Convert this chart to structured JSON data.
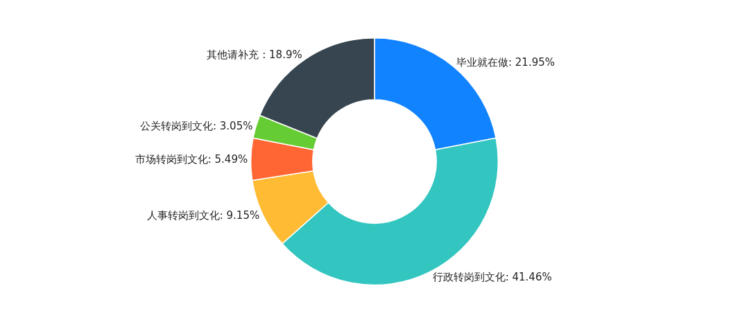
{
  "chart_data": {
    "type": "donut",
    "categories": [
      "毕业就在做",
      "行政转岗到文化",
      "人事转岗到文化",
      "市场转岗到文化",
      "公关转岗到文化",
      "其他请补充 "
    ],
    "values": [
      21.95,
      41.46,
      9.15,
      5.49,
      3.05,
      18.9
    ],
    "value_labels": [
      "21.95%",
      "41.46%",
      "9.15%",
      "5.49%",
      "3.05%",
      "18.9%"
    ],
    "colors": [
      "#1283ff",
      "#33c5bf",
      "#ffbb33",
      "#ff6633",
      "#66cc33",
      "#36454f"
    ],
    "legend": false
  }
}
